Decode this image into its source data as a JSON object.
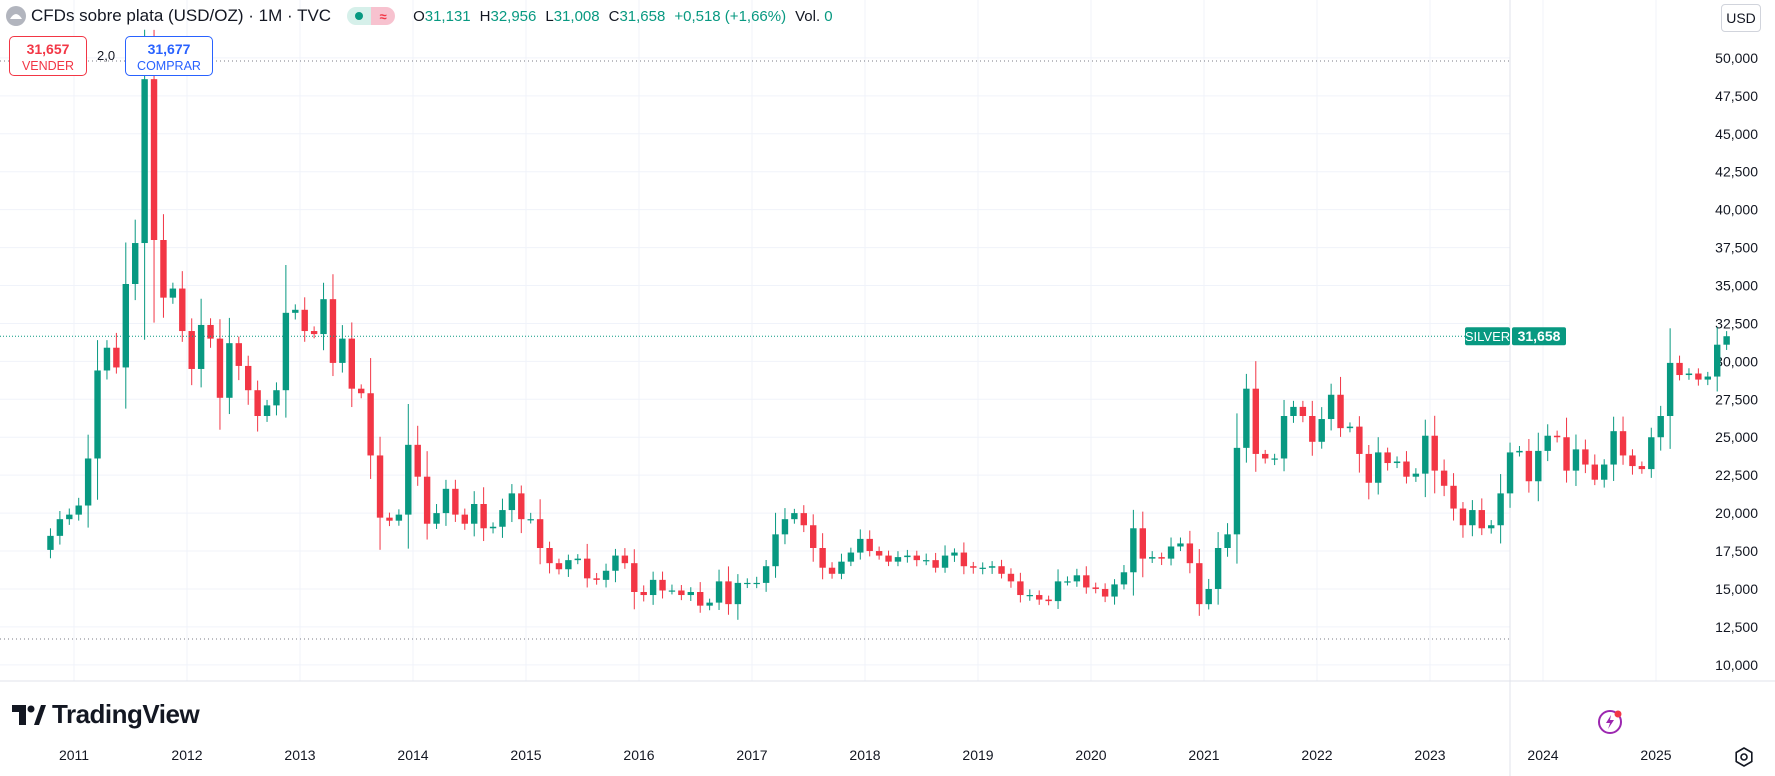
{
  "header": {
    "symbol_title": "CFDs sobre plata (USD/OZ) · 1M · TVC",
    "ohlc": [
      {
        "key": "O",
        "value": "31,131"
      },
      {
        "key": "H",
        "value": "32,956"
      },
      {
        "key": "L",
        "value": "31,008"
      },
      {
        "key": "C",
        "value": "31,658"
      },
      {
        "key": "",
        "value": "+0,518 (+1,66%)"
      },
      {
        "key": "Vol.",
        "value": "0"
      }
    ],
    "pill_glyph": "≈"
  },
  "trade": {
    "sell_price": "31,657",
    "sell_label": "VENDER",
    "spread": "2,0",
    "buy_price": "31,677",
    "buy_label": "COMPRAR"
  },
  "currency": "USD",
  "brand": "TradingView",
  "colors": {
    "up": "#089981",
    "down": "#f23645",
    "grid": "#f0f3fa",
    "axis_text": "#131722",
    "price_line": "#089981",
    "buy": "#2962ff",
    "sell": "#f23645"
  },
  "icons": {
    "symbol": "symbol-logo-icon",
    "flash": "flash-icon",
    "settings": "settings-icon"
  },
  "chart_data": {
    "type": "candlestick",
    "interval": "monthly",
    "x_labels": [
      "2011",
      "2012",
      "2013",
      "2014",
      "2015",
      "2016",
      "2017",
      "2018",
      "2019",
      "2020",
      "2021",
      "2022",
      "2023",
      "2024",
      "2025"
    ],
    "y_ticks": [
      "50,000",
      "47,500",
      "45,000",
      "42,500",
      "40,000",
      "37,500",
      "35,000",
      "32,500",
      "30,000",
      "27,500",
      "25,000",
      "22,500",
      "20,000",
      "17,500",
      "15,000",
      "12,500",
      "10,000"
    ],
    "ylim": [
      9.0,
      52.5
    ],
    "last_price": {
      "label": "SILVER",
      "value": "31,658",
      "raw": 31.658
    },
    "high_marker": 49.8,
    "low_marker": 11.7,
    "start_date": "2010-10",
    "closes": [
      18.5,
      19.6,
      19.9,
      20.5,
      23.6,
      29.4,
      30.9,
      29.6,
      35.1,
      37.8,
      48.6,
      38.0,
      34.2,
      34.8,
      32.0,
      29.5,
      32.4,
      31.5,
      27.6,
      31.2,
      29.7,
      28.1,
      26.4,
      27.1,
      28.1,
      33.2,
      33.4,
      32.0,
      31.8,
      34.1,
      29.9,
      31.5,
      28.2,
      27.9,
      23.8,
      19.7,
      19.5,
      19.9,
      24.5,
      22.4,
      19.3,
      20.0,
      21.6,
      19.9,
      19.3,
      20.6,
      19.0,
      19.1,
      20.2,
      21.3,
      19.6,
      19.6,
      17.7,
      16.7,
      16.3,
      16.9,
      17.0,
      15.7,
      15.6,
      16.2,
      17.2,
      16.7,
      14.8,
      14.6,
      15.6,
      14.9,
      14.9,
      14.6,
      14.8,
      13.9,
      14.1,
      15.5,
      14.0,
      15.4,
      15.4,
      15.4,
      16.5,
      18.6,
      19.6,
      20.0,
      19.2,
      17.7,
      16.4,
      16.0,
      16.8,
      17.4,
      18.3,
      17.5,
      17.2,
      16.8,
      17.1,
      17.2,
      16.9,
      16.9,
      16.4,
      17.2,
      17.4,
      16.5,
      16.4,
      16.4,
      16.5,
      16.0,
      15.5,
      14.6,
      14.6,
      14.3,
      14.2,
      15.5,
      15.5,
      15.9,
      15.1,
      15.0,
      14.5,
      15.3,
      16.1,
      19.0,
      17.0,
      17.1,
      17.0,
      17.8,
      18.0,
      16.7,
      14.0,
      15.0,
      17.7,
      18.6,
      24.3,
      28.2,
      23.9,
      23.6,
      23.6,
      26.4,
      27.0,
      26.4,
      24.7,
      26.2,
      27.8,
      25.6,
      25.7,
      23.9,
      22.0,
      24.0,
      23.3,
      23.4,
      22.4,
      22.6,
      25.1,
      22.8,
      21.8,
      20.3,
      19.2,
      20.2,
      19.0,
      19.2,
      21.3,
      24.0,
      24.1,
      22.1,
      24.1,
      25.1,
      25.0,
      22.8,
      24.2,
      23.2,
      22.2,
      23.2,
      25.4,
      23.8,
      23.1,
      22.9,
      25.0,
      26.4,
      29.9,
      29.1,
      29.2,
      28.8,
      29.0,
      31.1,
      31.658
    ],
    "title": "CFDs sobre plata (USD/OZ) · 1M · TVC",
    "xlabel": "",
    "ylabel": ""
  }
}
